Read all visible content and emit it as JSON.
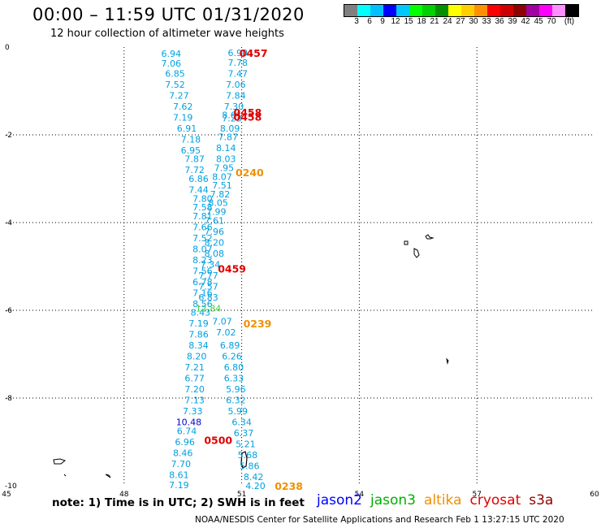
{
  "header": {
    "title": "00:00 – 11:59 UTC 01/31/2020",
    "subtitle": "12 hour collection of altimeter wave heights"
  },
  "colorbar": {
    "colors": [
      "#808080",
      "#00ffff",
      "#00bfff",
      "#0000ff",
      "#00c8ff",
      "#00ff00",
      "#00d000",
      "#009000",
      "#ffff00",
      "#ffd000",
      "#ff9000",
      "#ff0000",
      "#d00000",
      "#900000",
      "#a000a0",
      "#ff00ff",
      "#ff90ff",
      "#000000"
    ],
    "labels": [
      "3",
      "6",
      "9",
      "12",
      "15",
      "18",
      "21",
      "24",
      "27",
      "30",
      "33",
      "36",
      "39",
      "42",
      "45",
      "70",
      "(ft)"
    ]
  },
  "map": {
    "lon_ticks": [
      "45",
      "48",
      "51",
      "54",
      "57",
      "60"
    ],
    "lat_ticks": [
      "0",
      "-2",
      "-4",
      "-6",
      "-8",
      "-10"
    ],
    "lon_range": [
      45,
      60
    ],
    "lat_range": [
      -10,
      0
    ],
    "grid": "dotted"
  },
  "chart_data": {
    "type": "scatter",
    "title": "",
    "xlabel": "",
    "ylabel": "",
    "xlim": [
      45,
      60
    ],
    "ylim": [
      -10,
      0
    ],
    "series": [
      {
        "name": "cryosat",
        "color": "#00a0e0",
        "points": [
          [
            49.2,
            -0.15,
            "6.94"
          ],
          [
            49.2,
            -0.37,
            "7.06"
          ],
          [
            49.3,
            -0.6,
            "6.85"
          ],
          [
            49.3,
            -0.85,
            "7.52"
          ],
          [
            49.4,
            -1.1,
            "7.27"
          ],
          [
            49.5,
            -1.35,
            "7.62"
          ],
          [
            49.5,
            -1.6,
            "7.19"
          ],
          [
            49.6,
            -1.85,
            "6.91"
          ],
          [
            49.7,
            -2.1,
            "7.18"
          ],
          [
            49.7,
            -2.35,
            "6.95"
          ],
          [
            49.8,
            -2.55,
            "7.87"
          ],
          [
            49.8,
            -2.8,
            "7.72"
          ],
          [
            49.9,
            -3.0,
            "6.86"
          ],
          [
            49.9,
            -3.25,
            "7.44"
          ],
          [
            50.0,
            -3.45,
            "7.80"
          ],
          [
            50.0,
            -3.65,
            "7.58"
          ],
          [
            50.0,
            -3.85,
            "7.81"
          ],
          [
            50.0,
            -4.1,
            "7.66"
          ],
          [
            50.0,
            -4.35,
            "7.52"
          ],
          [
            50.0,
            -4.6,
            "8.07"
          ],
          [
            50.0,
            -4.85,
            "8.23"
          ],
          [
            50.0,
            -5.1,
            "7.56"
          ],
          [
            50.0,
            -5.35,
            "6.78"
          ],
          [
            50.0,
            -5.6,
            "7.16"
          ],
          [
            50.0,
            -5.85,
            "8.56"
          ],
          [
            49.95,
            -6.05,
            "8.43"
          ],
          [
            49.9,
            -6.3,
            "7.19"
          ],
          [
            49.9,
            -6.55,
            "7.86"
          ],
          [
            49.9,
            -6.8,
            "8.34"
          ],
          [
            49.85,
            -7.05,
            "8.20"
          ],
          [
            49.8,
            -7.3,
            "7.21"
          ],
          [
            49.8,
            -7.55,
            "6.77"
          ],
          [
            49.8,
            -7.8,
            "7.20"
          ],
          [
            49.8,
            -8.05,
            "7.13"
          ],
          [
            49.75,
            -8.3,
            "7.33"
          ],
          [
            49.65,
            -8.55,
            "10.48"
          ],
          [
            49.6,
            -8.75,
            "6.74"
          ],
          [
            49.55,
            -9.0,
            "6.96"
          ],
          [
            49.5,
            -9.25,
            "8.46"
          ],
          [
            49.45,
            -9.5,
            "7.70"
          ],
          [
            49.4,
            -9.75,
            "8.61"
          ],
          [
            49.4,
            -9.98,
            "7.19"
          ]
        ]
      },
      {
        "name": "s3a",
        "color": "#00a0e0",
        "points": [
          [
            50.9,
            -0.13,
            "6.90"
          ],
          [
            50.9,
            -0.35,
            "7.78"
          ],
          [
            50.9,
            -0.6,
            "7.47"
          ],
          [
            50.85,
            -0.85,
            "7.06"
          ],
          [
            50.85,
            -1.1,
            "7.84"
          ],
          [
            50.8,
            -1.35,
            "7.30"
          ],
          [
            50.75,
            -1.55,
            "8.61"
          ],
          [
            50.75,
            -1.62,
            "7.23"
          ],
          [
            50.7,
            -1.85,
            "8.09"
          ],
          [
            50.65,
            -2.05,
            "7.87"
          ],
          [
            50.6,
            -2.3,
            "8.14"
          ],
          [
            50.6,
            -2.55,
            "8.03"
          ],
          [
            50.55,
            -2.75,
            "7.95"
          ],
          [
            50.5,
            -2.95,
            "8.07"
          ],
          [
            50.5,
            -3.15,
            "7.51"
          ],
          [
            50.45,
            -3.35,
            "7.82"
          ],
          [
            50.4,
            -3.55,
            "8.05"
          ],
          [
            50.35,
            -3.75,
            "7.99"
          ],
          [
            50.3,
            -3.95,
            "7.61"
          ],
          [
            50.3,
            -4.2,
            "7.96"
          ],
          [
            50.3,
            -4.45,
            "8.20"
          ],
          [
            50.3,
            -4.7,
            "8.08"
          ],
          [
            50.2,
            -4.95,
            "7.34"
          ],
          [
            50.15,
            -5.2,
            "7.77"
          ],
          [
            50.15,
            -5.45,
            "7.57"
          ],
          [
            50.15,
            -5.7,
            "6.83"
          ],
          [
            50.15,
            -5.95,
            "12.84"
          ],
          [
            50.5,
            -6.25,
            "7.07"
          ],
          [
            50.6,
            -6.5,
            "7.02"
          ],
          [
            50.7,
            -6.8,
            "6.89"
          ],
          [
            50.75,
            -7.05,
            "6.26"
          ],
          [
            50.8,
            -7.3,
            "6.80"
          ],
          [
            50.8,
            -7.55,
            "6.33"
          ],
          [
            50.85,
            -7.8,
            "5.96"
          ],
          [
            50.85,
            -8.05,
            "6.32"
          ],
          [
            50.9,
            -8.3,
            "5.99"
          ],
          [
            51.0,
            -8.55,
            "6.34"
          ],
          [
            51.05,
            -8.8,
            "6.37"
          ],
          [
            51.1,
            -9.05,
            "5.21"
          ],
          [
            51.15,
            -9.3,
            "5.68"
          ],
          [
            51.2,
            -9.55,
            "5.86"
          ],
          [
            51.3,
            -9.8,
            "8.42"
          ],
          [
            51.35,
            -10.0,
            "4.20"
          ]
        ]
      }
    ],
    "passes": [
      {
        "label": "0457",
        "lon": 50.9,
        "lat": -0.13,
        "color": "#e00000"
      },
      {
        "label": "0458",
        "lon": 50.75,
        "lat": -1.48,
        "color": "#e00000"
      },
      {
        "label": "0458",
        "lon": 50.75,
        "lat": -1.58,
        "color": "#e00000"
      },
      {
        "label": "0240",
        "lon": 50.8,
        "lat": -2.85,
        "color": "#f09000"
      },
      {
        "label": "0459",
        "lon": 50.35,
        "lat": -5.05,
        "color": "#e00000"
      },
      {
        "label": "0239",
        "lon": 51.0,
        "lat": -6.3,
        "color": "#f09000"
      },
      {
        "label": "0500",
        "lon": 50.0,
        "lat": -8.95,
        "color": "#e00000"
      },
      {
        "label": "0238",
        "lon": 51.8,
        "lat": -10.0,
        "color": "#f09000"
      }
    ]
  },
  "footer": {
    "note": "note:  1) Time is in UTC;  2) SWH is in feet",
    "legend": [
      {
        "name": "jason2",
        "color": "#0000ff"
      },
      {
        "name": "jason3",
        "color": "#00b000"
      },
      {
        "name": "altika",
        "color": "#f09000"
      },
      {
        "name": "cryosat",
        "color": "#e00000"
      },
      {
        "name": "s3a",
        "color": "#900000"
      }
    ],
    "credit": "NOAA/NESDIS Center for Satellite Applications and Research    Feb  1 13:27:15 UTC 2020"
  }
}
